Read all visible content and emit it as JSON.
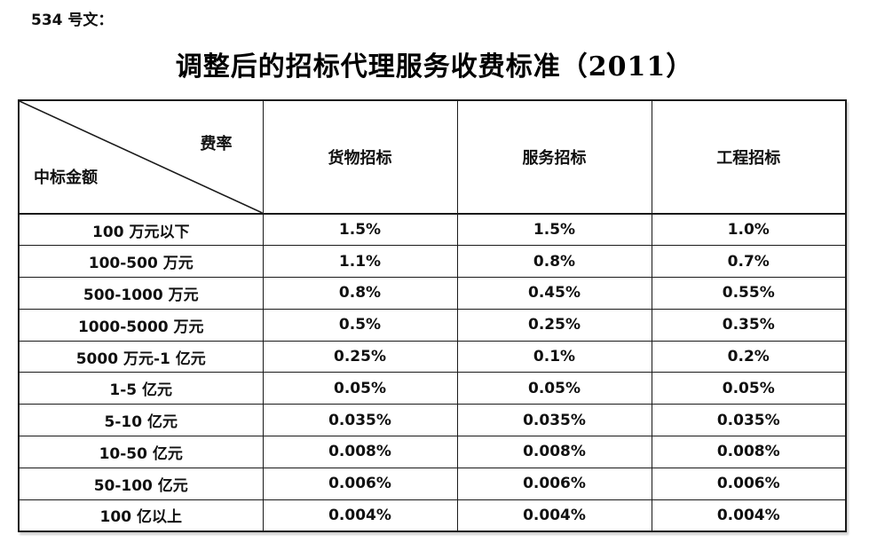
{
  "doc": {
    "ref_label": "534 号文：",
    "title": "调整后的招标代理服务收费标准（2011）"
  },
  "table": {
    "corner": {
      "top_right": "费率",
      "bottom_left": "中标金额"
    },
    "columns": [
      "货物招标",
      "服务招标",
      "工程招标"
    ],
    "rows": [
      {
        "label": "100 万元以下",
        "values": [
          "1.5%",
          "1.5%",
          "1.0%"
        ]
      },
      {
        "label": "100-500 万元",
        "values": [
          "1.1%",
          "0.8%",
          "0.7%"
        ]
      },
      {
        "label": "500-1000 万元",
        "values": [
          "0.8%",
          "0.45%",
          "0.55%"
        ]
      },
      {
        "label": "1000-5000 万元",
        "values": [
          "0.5%",
          "0.25%",
          "0.35%"
        ]
      },
      {
        "label": "5000 万元-1 亿元",
        "values": [
          "0.25%",
          "0.1%",
          "0.2%"
        ]
      },
      {
        "label": "1-5 亿元",
        "values": [
          "0.05%",
          "0.05%",
          "0.05%"
        ]
      },
      {
        "label": "5-10 亿元",
        "values": [
          "0.035%",
          "0.035%",
          "0.035%"
        ]
      },
      {
        "label": "10-50 亿元",
        "values": [
          "0.008%",
          "0.008%",
          "0.008%"
        ]
      },
      {
        "label": "50-100 亿元",
        "values": [
          "0.006%",
          "0.006%",
          "0.006%"
        ]
      },
      {
        "label": "100 亿以上",
        "values": [
          "0.004%",
          "0.004%",
          "0.004%"
        ]
      }
    ]
  },
  "colors": {
    "text": "#111111",
    "border": "#1a1a1a",
    "background": "#ffffff"
  }
}
